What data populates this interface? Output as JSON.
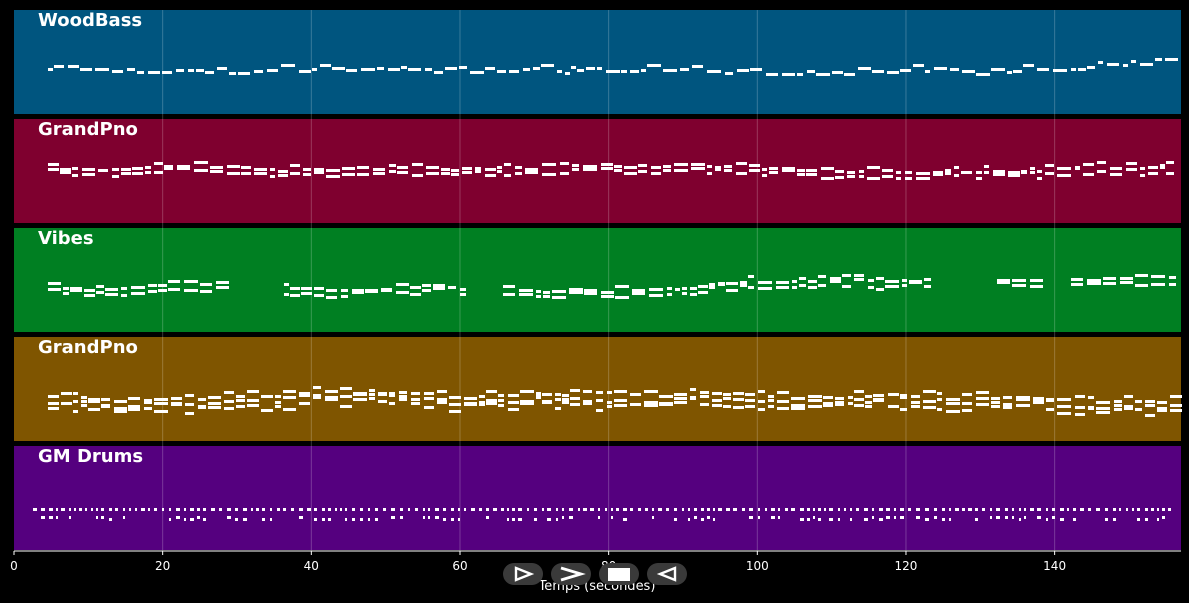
{
  "colors": {
    "background": "#000000",
    "note": "#ffffff",
    "grid": "#ffffff"
  },
  "tracks": [
    {
      "name": "WoodBass",
      "color": "#00557f",
      "density": 1,
      "style": "line"
    },
    {
      "name": "GrandPno",
      "color": "#7f002f",
      "density": 2,
      "style": "chords"
    },
    {
      "name": "Vibes",
      "color": "#007f22",
      "density": 2,
      "style": "gapped"
    },
    {
      "name": "GrandPno",
      "color": "#7f5500",
      "density": 3,
      "style": "chords"
    },
    {
      "name": "GM Drums",
      "color": "#55007f",
      "density": 3,
      "style": "drums"
    }
  ],
  "axis": {
    "title": "Temps (secondes)",
    "ticks": [
      "0",
      "20",
      "40",
      "60",
      "80",
      "100",
      "120",
      "140"
    ],
    "tick_values": [
      0,
      20,
      40,
      60,
      80,
      100,
      120,
      140
    ],
    "xlim": [
      0,
      157
    ]
  },
  "controls": {
    "play_icon": "play-outline-icon",
    "forward_icon": "chevron-right-icon",
    "stop_icon": "stop-icon",
    "back_icon": "rewind-icon"
  }
}
